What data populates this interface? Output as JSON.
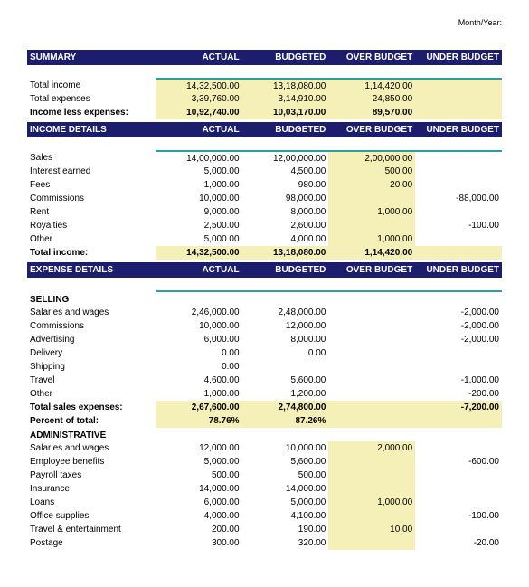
{
  "month_year_label": "Month/Year:",
  "headers": {
    "actual": "ACTUAL",
    "budgeted": "BUDGETED",
    "over": "OVER BUDGET",
    "under": "UNDER BUDGET"
  },
  "summary": {
    "title": "SUMMARY",
    "total_income": {
      "label": "Total income",
      "actual": "14,32,500.00",
      "budgeted": "13,18,080.00",
      "over": "1,14,420.00",
      "under": ""
    },
    "total_expenses": {
      "label": "Total expenses",
      "actual": "3,39,760.00",
      "budgeted": "3,14,910.00",
      "over": "24,850.00",
      "under": ""
    },
    "income_less": {
      "label": "Income less expenses:",
      "actual": "10,92,740.00",
      "budgeted": "10,03,170.00",
      "over": "89,570.00",
      "under": ""
    }
  },
  "income": {
    "title": "INCOME DETAILS",
    "rows": [
      {
        "label": "Sales",
        "actual": "14,00,000.00",
        "budgeted": "12,00,000.00",
        "over": "2,00,000.00",
        "under": ""
      },
      {
        "label": "Interest earned",
        "actual": "5,000.00",
        "budgeted": "4,500.00",
        "over": "500.00",
        "under": ""
      },
      {
        "label": "Fees",
        "actual": "1,000.00",
        "budgeted": "980.00",
        "over": "20.00",
        "under": ""
      },
      {
        "label": "Commissions",
        "actual": "10,000.00",
        "budgeted": "98,000.00",
        "over": "",
        "under": "-88,000.00"
      },
      {
        "label": "Rent",
        "actual": "9,000.00",
        "budgeted": "8,000.00",
        "over": "1,000.00",
        "under": ""
      },
      {
        "label": "Royalties",
        "actual": "2,500.00",
        "budgeted": "2,600.00",
        "over": "",
        "under": "-100.00"
      },
      {
        "label": "Other",
        "actual": "5,000.00",
        "budgeted": "4,000.00",
        "over": "1,000.00",
        "under": ""
      }
    ],
    "total": {
      "label": "Total income:",
      "actual": "14,32,500.00",
      "budgeted": "13,18,080.00",
      "over": "1,14,420.00",
      "under": ""
    }
  },
  "expense": {
    "title": "EXPENSE DETAILS",
    "selling": {
      "title": "SELLING",
      "rows": [
        {
          "label": "Salaries and wages",
          "actual": "2,46,000.00",
          "budgeted": "2,48,000.00",
          "over": "",
          "under": "-2,000.00"
        },
        {
          "label": "Commissions",
          "actual": "10,000.00",
          "budgeted": "12,000.00",
          "over": "",
          "under": "-2,000.00"
        },
        {
          "label": "Advertising",
          "actual": "6,000.00",
          "budgeted": "8,000.00",
          "over": "",
          "under": "-2,000.00"
        },
        {
          "label": "Delivery",
          "actual": "0.00",
          "budgeted": "0.00",
          "over": "",
          "under": ""
        },
        {
          "label": "Shipping",
          "actual": "0.00",
          "budgeted": "",
          "over": "",
          "under": ""
        },
        {
          "label": "Travel",
          "actual": "4,600.00",
          "budgeted": "5,600.00",
          "over": "",
          "under": "-1,000.00"
        },
        {
          "label": "Other",
          "actual": "1,000.00",
          "budgeted": "1,200.00",
          "over": "",
          "under": "-200.00"
        }
      ],
      "total": {
        "label": "Total sales expenses:",
        "actual": "2,67,600.00",
        "budgeted": "2,74,800.00",
        "over": "",
        "under": "-7,200.00"
      },
      "percent": {
        "label": "Percent of total:",
        "actual": "78.76%",
        "budgeted": "87.26%"
      }
    },
    "admin": {
      "title": "ADMINISTRATIVE",
      "rows": [
        {
          "label": "Salaries and wages",
          "actual": "12,000.00",
          "budgeted": "10,000.00",
          "over": "2,000.00",
          "under": ""
        },
        {
          "label": "Employee benefits",
          "actual": "5,000.00",
          "budgeted": "5,600.00",
          "over": "",
          "under": "-600.00"
        },
        {
          "label": "Payroll taxes",
          "actual": "500.00",
          "budgeted": "500.00",
          "over": "",
          "under": ""
        },
        {
          "label": "Insurance",
          "actual": "14,000.00",
          "budgeted": "14,000.00",
          "over": "",
          "under": ""
        },
        {
          "label": "Loans",
          "actual": "6,000.00",
          "budgeted": "5,000.00",
          "over": "1,000.00",
          "under": ""
        },
        {
          "label": "Office supplies",
          "actual": "4,000.00",
          "budgeted": "4,100.00",
          "over": "",
          "under": "-100.00"
        },
        {
          "label": "Travel & entertainment",
          "actual": "200.00",
          "budgeted": "190.00",
          "over": "10.00",
          "under": ""
        },
        {
          "label": "Postage",
          "actual": "300.00",
          "budgeted": "320.00",
          "over": "",
          "under": "-20.00"
        }
      ]
    }
  },
  "colors": {
    "header_bg": "#1d1d6e",
    "highlight_bg": "#f5f0b8",
    "underline": "#2aa0a0",
    "text": "#000000",
    "bg": "#ffffff"
  },
  "typography": {
    "base_fontsize": 10,
    "font_family": "Arial"
  }
}
